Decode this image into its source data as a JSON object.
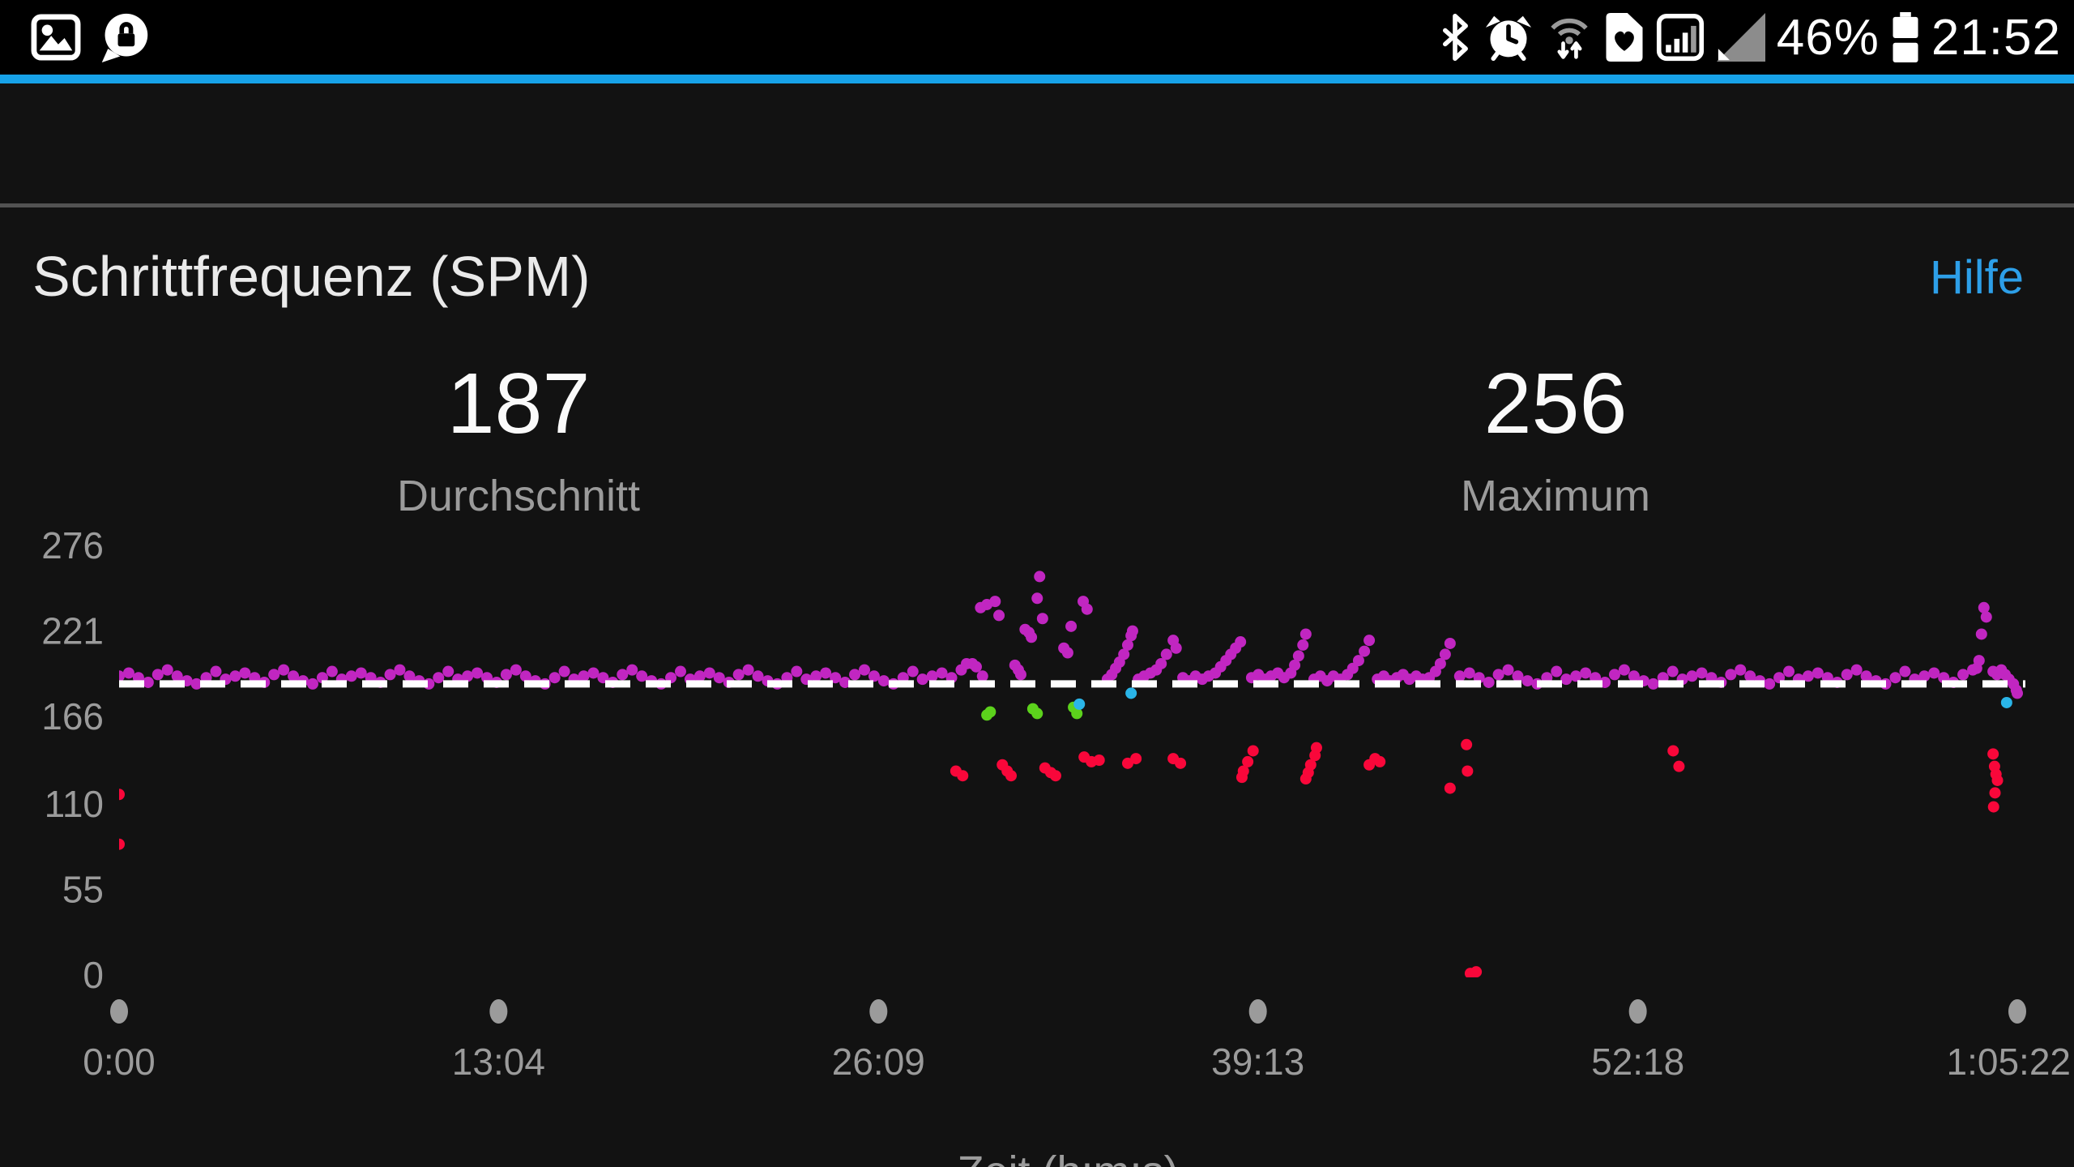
{
  "status_bar": {
    "time": "21:52",
    "battery_percent": "46%",
    "left_icons": [
      "screenshot-image-icon",
      "private-chat-lock-icon"
    ],
    "right_icons": [
      "bluetooth-icon",
      "alarm-icon",
      "wifi-tethering-icon",
      "sim-health-icon",
      "mobile-signal-boxed-icon",
      "no-signal-triangle-icon",
      "battery-icon"
    ]
  },
  "header": {
    "title": "Schrittfrequenz (SPM)",
    "help_link": "Hilfe"
  },
  "summary": [
    {
      "value": "187",
      "label": "Durchschnitt"
    },
    {
      "value": "256",
      "label": "Maximum"
    }
  ],
  "colors": {
    "accent_bar": "#17A2E8",
    "help_link": "#2D9FE8",
    "panel_bg": "#121212",
    "axis_text": "#9B9B9B",
    "average_line": "#FFFFFF",
    "series_magenta": "#C126C1",
    "series_red": "#F9073A",
    "series_green": "#5CD21C",
    "series_cyan": "#2AB5E8"
  },
  "chart_data": {
    "type": "scatter",
    "title": "Schrittfrequenz (SPM)",
    "xlabel": "Zeit (h:m:s)",
    "ylabel": "",
    "x_unit": "seconds",
    "xlim": [
      0,
      3922
    ],
    "ylim": [
      0,
      287
    ],
    "grid": false,
    "average": 187,
    "maximum": 256,
    "average_line": 187,
    "y_ticks": [
      0,
      55,
      110,
      166,
      221,
      276
    ],
    "x_ticks": [
      {
        "t": 0,
        "label": "0:00"
      },
      {
        "t": 784,
        "label": "13:04"
      },
      {
        "t": 1569,
        "label": "26:09"
      },
      {
        "t": 2353,
        "label": "39:13"
      },
      {
        "t": 3138,
        "label": "52:18"
      },
      {
        "t": 3922,
        "label": "1:05:22"
      }
    ],
    "series": [
      {
        "name": "magenta",
        "color": "#C126C1",
        "points": [
          [
            0,
            192
          ],
          [
            20,
            194
          ],
          [
            40,
            191
          ],
          [
            60,
            188
          ],
          [
            80,
            193
          ],
          [
            100,
            196
          ],
          [
            120,
            192
          ],
          [
            140,
            189
          ],
          [
            160,
            187
          ],
          [
            180,
            191
          ],
          [
            200,
            195
          ],
          [
            220,
            190
          ],
          [
            240,
            192
          ],
          [
            260,
            194
          ],
          [
            280,
            191
          ],
          [
            300,
            188
          ],
          [
            320,
            193
          ],
          [
            340,
            196
          ],
          [
            360,
            192
          ],
          [
            380,
            189
          ],
          [
            400,
            187
          ],
          [
            420,
            191
          ],
          [
            440,
            195
          ],
          [
            460,
            190
          ],
          [
            480,
            192
          ],
          [
            500,
            194
          ],
          [
            520,
            191
          ],
          [
            540,
            188
          ],
          [
            560,
            193
          ],
          [
            580,
            196
          ],
          [
            600,
            192
          ],
          [
            620,
            189
          ],
          [
            640,
            187
          ],
          [
            660,
            191
          ],
          [
            680,
            195
          ],
          [
            700,
            190
          ],
          [
            720,
            192
          ],
          [
            740,
            194
          ],
          [
            760,
            191
          ],
          [
            780,
            188
          ],
          [
            800,
            193
          ],
          [
            820,
            196
          ],
          [
            840,
            192
          ],
          [
            860,
            189
          ],
          [
            880,
            187
          ],
          [
            900,
            191
          ],
          [
            920,
            195
          ],
          [
            940,
            190
          ],
          [
            960,
            192
          ],
          [
            980,
            194
          ],
          [
            1000,
            191
          ],
          [
            1020,
            188
          ],
          [
            1040,
            193
          ],
          [
            1060,
            196
          ],
          [
            1080,
            192
          ],
          [
            1100,
            189
          ],
          [
            1120,
            187
          ],
          [
            1140,
            191
          ],
          [
            1160,
            195
          ],
          [
            1180,
            190
          ],
          [
            1200,
            192
          ],
          [
            1220,
            194
          ],
          [
            1240,
            191
          ],
          [
            1260,
            188
          ],
          [
            1280,
            193
          ],
          [
            1300,
            196
          ],
          [
            1320,
            192
          ],
          [
            1340,
            189
          ],
          [
            1360,
            187
          ],
          [
            1380,
            191
          ],
          [
            1400,
            195
          ],
          [
            1420,
            190
          ],
          [
            1440,
            192
          ],
          [
            1460,
            194
          ],
          [
            1480,
            191
          ],
          [
            1500,
            188
          ],
          [
            1520,
            193
          ],
          [
            1540,
            196
          ],
          [
            1560,
            192
          ],
          [
            1580,
            189
          ],
          [
            1600,
            187
          ],
          [
            1620,
            191
          ],
          [
            1640,
            195
          ],
          [
            1660,
            190
          ],
          [
            1680,
            192
          ],
          [
            1700,
            194
          ],
          [
            1720,
            191
          ],
          [
            1740,
            196
          ],
          [
            1751,
            200
          ],
          [
            1763,
            200
          ],
          [
            1771,
            198
          ],
          [
            1784,
            192
          ],
          [
            1780,
            236
          ],
          [
            1793,
            238
          ],
          [
            1810,
            240
          ],
          [
            1818,
            231
          ],
          [
            1851,
            199
          ],
          [
            1858,
            196
          ],
          [
            1863,
            193
          ],
          [
            1872,
            222
          ],
          [
            1880,
            220
          ],
          [
            1885,
            217
          ],
          [
            1897,
            242
          ],
          [
            1902,
            256
          ],
          [
            1908,
            229
          ],
          [
            1952,
            210
          ],
          [
            1960,
            207
          ],
          [
            1967,
            224
          ],
          [
            1992,
            240
          ],
          [
            2000,
            235
          ],
          [
            2042,
            190
          ],
          [
            2051,
            193
          ],
          [
            2059,
            197
          ],
          [
            2067,
            201
          ],
          [
            2076,
            206
          ],
          [
            2084,
            212
          ],
          [
            2091,
            218
          ],
          [
            2094,
            221
          ],
          [
            2106,
            190
          ],
          [
            2118,
            192
          ],
          [
            2131,
            194
          ],
          [
            2143,
            196
          ],
          [
            2153,
            200
          ],
          [
            2164,
            206
          ],
          [
            2178,
            215
          ],
          [
            2184,
            210
          ],
          [
            2198,
            191
          ],
          [
            2211,
            189
          ],
          [
            2224,
            192
          ],
          [
            2238,
            190
          ],
          [
            2251,
            192
          ],
          [
            2265,
            194
          ],
          [
            2276,
            198
          ],
          [
            2287,
            202
          ],
          [
            2297,
            206
          ],
          [
            2307,
            210
          ],
          [
            2317,
            214
          ],
          [
            2340,
            191
          ],
          [
            2354,
            193
          ],
          [
            2367,
            190
          ],
          [
            2380,
            192
          ],
          [
            2394,
            194
          ],
          [
            2407,
            191
          ],
          [
            2421,
            194
          ],
          [
            2429,
            199
          ],
          [
            2437,
            205
          ],
          [
            2446,
            212
          ],
          [
            2452,
            219
          ],
          [
            2469,
            190
          ],
          [
            2482,
            192
          ],
          [
            2496,
            189
          ],
          [
            2509,
            192
          ],
          [
            2523,
            190
          ],
          [
            2538,
            193
          ],
          [
            2549,
            197
          ],
          [
            2561,
            202
          ],
          [
            2573,
            208
          ],
          [
            2583,
            215
          ],
          [
            2600,
            190
          ],
          [
            2613,
            192
          ],
          [
            2626,
            189
          ],
          [
            2640,
            191
          ],
          [
            2653,
            193
          ],
          [
            2666,
            190
          ],
          [
            2680,
            192
          ],
          [
            2693,
            190
          ],
          [
            2707,
            191
          ],
          [
            2720,
            195
          ],
          [
            2730,
            200
          ],
          [
            2740,
            206
          ],
          [
            2750,
            213
          ],
          [
            2770,
            192
          ],
          [
            2790,
            194
          ],
          [
            2810,
            191
          ],
          [
            2830,
            188
          ],
          [
            2850,
            193
          ],
          [
            2870,
            196
          ],
          [
            2890,
            192
          ],
          [
            2910,
            189
          ],
          [
            2930,
            187
          ],
          [
            2950,
            191
          ],
          [
            2970,
            195
          ],
          [
            2990,
            190
          ],
          [
            3010,
            192
          ],
          [
            3030,
            194
          ],
          [
            3050,
            191
          ],
          [
            3070,
            188
          ],
          [
            3090,
            193
          ],
          [
            3110,
            196
          ],
          [
            3130,
            192
          ],
          [
            3150,
            189
          ],
          [
            3170,
            187
          ],
          [
            3190,
            191
          ],
          [
            3210,
            195
          ],
          [
            3230,
            190
          ],
          [
            3250,
            192
          ],
          [
            3270,
            194
          ],
          [
            3290,
            191
          ],
          [
            3310,
            188
          ],
          [
            3330,
            193
          ],
          [
            3350,
            196
          ],
          [
            3370,
            192
          ],
          [
            3390,
            189
          ],
          [
            3410,
            187
          ],
          [
            3430,
            191
          ],
          [
            3450,
            195
          ],
          [
            3470,
            190
          ],
          [
            3490,
            192
          ],
          [
            3510,
            194
          ],
          [
            3530,
            191
          ],
          [
            3550,
            188
          ],
          [
            3570,
            193
          ],
          [
            3590,
            196
          ],
          [
            3610,
            192
          ],
          [
            3630,
            189
          ],
          [
            3650,
            187
          ],
          [
            3670,
            191
          ],
          [
            3690,
            195
          ],
          [
            3710,
            190
          ],
          [
            3730,
            192
          ],
          [
            3750,
            194
          ],
          [
            3770,
            191
          ],
          [
            3790,
            188
          ],
          [
            3810,
            193
          ],
          [
            3830,
            196
          ],
          [
            3838,
            197
          ],
          [
            3843,
            202
          ],
          [
            3848,
            219
          ],
          [
            3853,
            236
          ],
          [
            3858,
            230
          ],
          [
            3872,
            195
          ],
          [
            3880,
            193
          ],
          [
            3889,
            196
          ],
          [
            3897,
            193
          ],
          [
            3905,
            190
          ],
          [
            3914,
            187
          ],
          [
            3920,
            183
          ],
          [
            3922,
            181
          ]
        ]
      },
      {
        "name": "red",
        "color": "#F9073A",
        "points": [
          [
            0,
            116
          ],
          [
            0,
            84
          ],
          [
            1729,
            131
          ],
          [
            1743,
            128
          ],
          [
            1825,
            135
          ],
          [
            1835,
            131
          ],
          [
            1843,
            128
          ],
          [
            1913,
            133
          ],
          [
            1925,
            130
          ],
          [
            1935,
            128
          ],
          [
            1994,
            140
          ],
          [
            2009,
            137
          ],
          [
            2025,
            138
          ],
          [
            2084,
            136
          ],
          [
            2101,
            139
          ],
          [
            2178,
            139
          ],
          [
            2193,
            136
          ],
          [
            2320,
            127
          ],
          [
            2323,
            131
          ],
          [
            2332,
            137
          ],
          [
            2343,
            144
          ],
          [
            2452,
            126
          ],
          [
            2457,
            130
          ],
          [
            2462,
            135
          ],
          [
            2471,
            141
          ],
          [
            2474,
            146
          ],
          [
            2583,
            135
          ],
          [
            2595,
            139
          ],
          [
            2605,
            137
          ],
          [
            2750,
            120
          ],
          [
            2784,
            148
          ],
          [
            2786,
            131
          ],
          [
            2792,
            1
          ],
          [
            2804,
            2
          ],
          [
            3211,
            144
          ],
          [
            3223,
            134
          ],
          [
            3872,
            142
          ],
          [
            3873,
            108
          ],
          [
            3875,
            134
          ],
          [
            3876,
            117
          ],
          [
            3878,
            129
          ],
          [
            3881,
            125
          ]
        ]
      },
      {
        "name": "green",
        "color": "#5CD21C",
        "points": [
          [
            1793,
            167
          ],
          [
            1800,
            169
          ],
          [
            1888,
            171
          ],
          [
            1897,
            168
          ],
          [
            1972,
            172
          ],
          [
            1979,
            168
          ]
        ]
      },
      {
        "name": "cyan",
        "color": "#2AB5E8",
        "points": [
          [
            1984,
            174
          ],
          [
            2091,
            181
          ],
          [
            3900,
            175
          ]
        ]
      }
    ]
  }
}
